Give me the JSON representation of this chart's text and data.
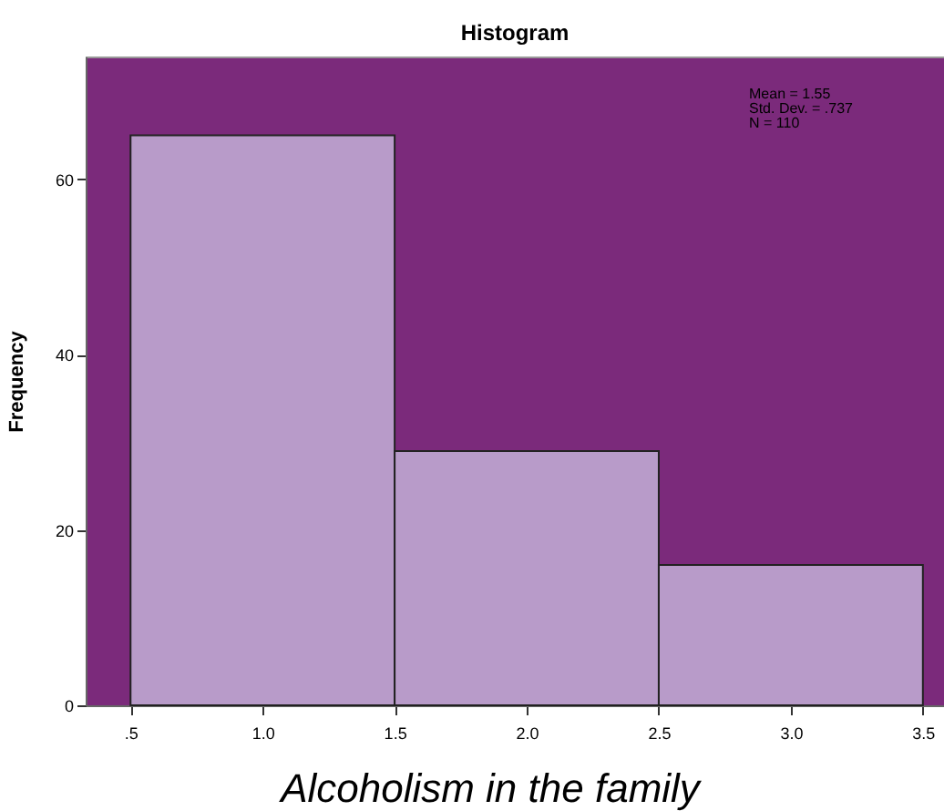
{
  "chart_data": {
    "type": "histogram",
    "title": "Histogram",
    "xlabel": "Alcoholism in the family",
    "ylabel": "Frequency",
    "bins": [
      0.5,
      1.5,
      2.5,
      3.5
    ],
    "values": [
      65,
      29,
      16
    ],
    "color": "#b89bc9",
    "xlim": [
      0.33,
      3.58
    ],
    "ylim": [
      0,
      74
    ],
    "xticks": [
      {
        "value": 0.5,
        "label": ".5"
      },
      {
        "value": 1,
        "label": "1.0"
      },
      {
        "value": 1.5,
        "label": "1.5"
      },
      {
        "value": 2,
        "label": "2.0"
      },
      {
        "value": 2.5,
        "label": "2.5"
      },
      {
        "value": 3,
        "label": "3.0"
      },
      {
        "value": 3.5,
        "label": "3.5"
      }
    ],
    "yticks": [
      0,
      20,
      40,
      60
    ],
    "grid": false,
    "annotations": [
      "Mean = 1.55",
      "Std. Dev. = .737",
      "N = 110"
    ]
  }
}
